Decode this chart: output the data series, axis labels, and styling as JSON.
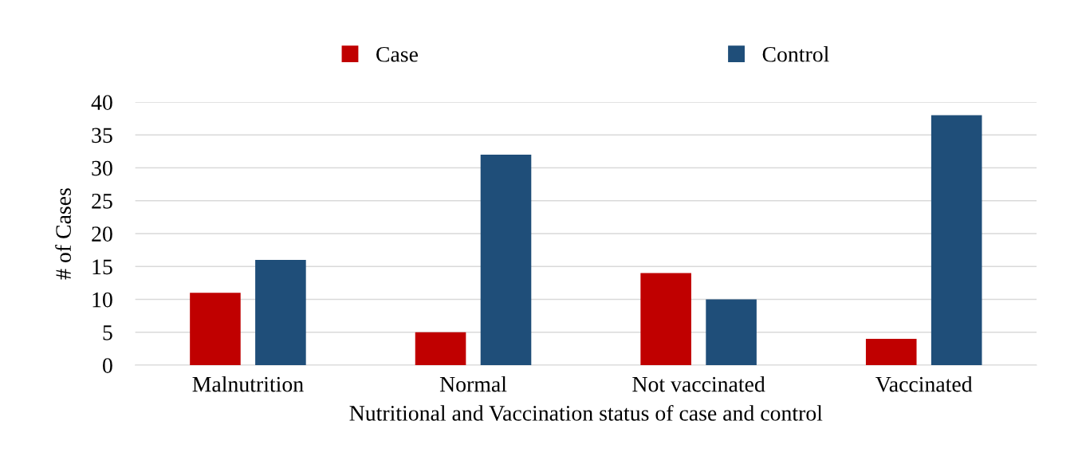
{
  "chart_data": {
    "type": "bar",
    "xlabel": "Nutritional and Vaccination status of case and control",
    "ylabel": "# of Cases",
    "categories": [
      "Malnutrition",
      "Normal",
      "Not vaccinated",
      "Vaccinated"
    ],
    "series": [
      {
        "name": "Case",
        "color": "#c00000",
        "values": [
          11,
          5,
          14,
          4
        ]
      },
      {
        "name": "Control",
        "color": "#1f4e79",
        "values": [
          16,
          32,
          10,
          38
        ]
      }
    ],
    "ylim": [
      0,
      40
    ],
    "yticks": [
      0,
      5,
      10,
      15,
      20,
      25,
      30,
      35,
      40
    ],
    "grid": "y",
    "legend": "top"
  }
}
